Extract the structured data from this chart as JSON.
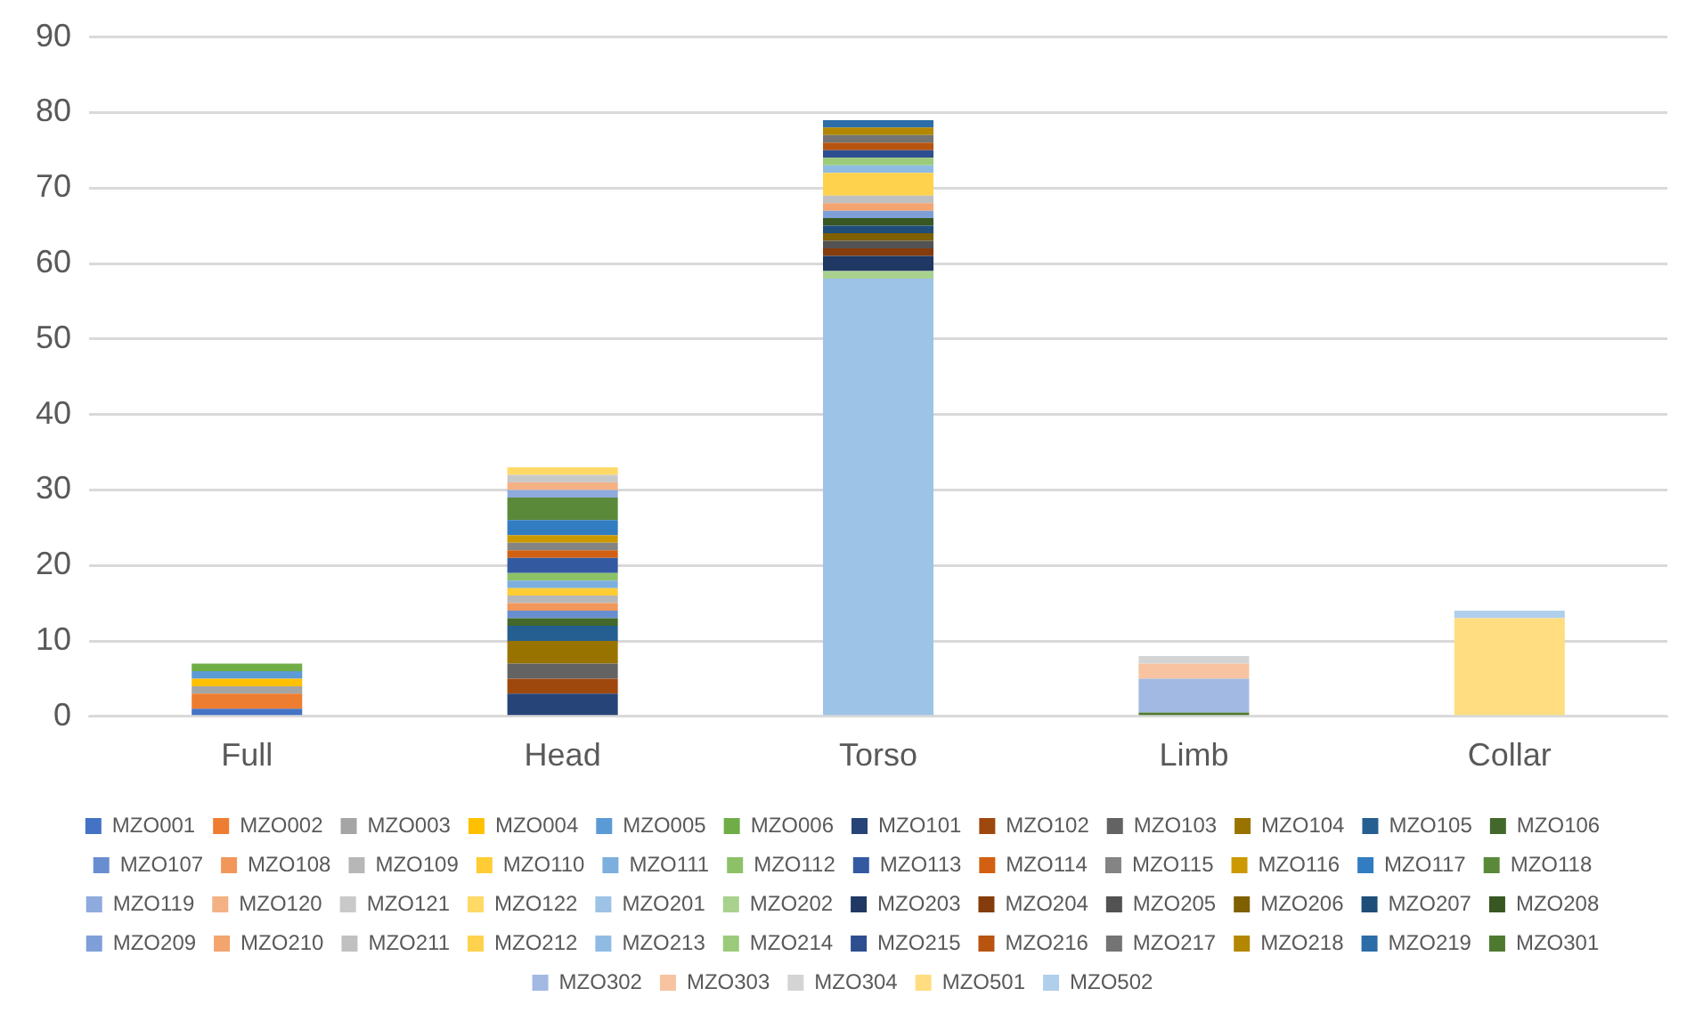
{
  "chart_data": {
    "type": "bar",
    "stacked": true,
    "categories": [
      "Full",
      "Head",
      "Torso",
      "Limb",
      "Collar"
    ],
    "ylim": [
      0,
      90
    ],
    "yticks": [
      0,
      10,
      20,
      30,
      40,
      50,
      60,
      70,
      80,
      90
    ],
    "grid": "y",
    "legend": "bottom",
    "series": [
      {
        "name": "MZO001",
        "color": "#4472c4",
        "values": [
          1,
          null,
          null,
          null,
          null
        ]
      },
      {
        "name": "MZO002",
        "color": "#ed7d31",
        "values": [
          2,
          null,
          null,
          null,
          null
        ]
      },
      {
        "name": "MZO003",
        "color": "#a5a5a5",
        "values": [
          1,
          null,
          null,
          null,
          null
        ]
      },
      {
        "name": "MZO004",
        "color": "#ffc000",
        "values": [
          1,
          null,
          null,
          null,
          null
        ]
      },
      {
        "name": "MZO005",
        "color": "#5b9bd5",
        "values": [
          1,
          null,
          null,
          null,
          null
        ]
      },
      {
        "name": "MZO006",
        "color": "#70ad47",
        "values": [
          1,
          null,
          null,
          null,
          null
        ]
      },
      {
        "name": "MZO101",
        "color": "#264478",
        "values": [
          null,
          3,
          null,
          null,
          null
        ]
      },
      {
        "name": "MZO102",
        "color": "#9e480e",
        "values": [
          null,
          2,
          null,
          null,
          null
        ]
      },
      {
        "name": "MZO103",
        "color": "#636363",
        "values": [
          null,
          2,
          null,
          null,
          null
        ]
      },
      {
        "name": "MZO104",
        "color": "#997300",
        "values": [
          null,
          3,
          null,
          null,
          null
        ]
      },
      {
        "name": "MZO105",
        "color": "#255e91",
        "values": [
          null,
          2,
          null,
          null,
          null
        ]
      },
      {
        "name": "MZO106",
        "color": "#43682b",
        "values": [
          null,
          1,
          null,
          null,
          null
        ]
      },
      {
        "name": "MZO107",
        "color": "#698ed0",
        "values": [
          null,
          1,
          null,
          null,
          null
        ]
      },
      {
        "name": "MZO108",
        "color": "#f1975a",
        "values": [
          null,
          1,
          null,
          null,
          null
        ]
      },
      {
        "name": "MZO109",
        "color": "#b7b7b7",
        "values": [
          null,
          1,
          null,
          null,
          null
        ]
      },
      {
        "name": "MZO110",
        "color": "#ffcd33",
        "values": [
          null,
          1,
          null,
          null,
          null
        ]
      },
      {
        "name": "MZO111",
        "color": "#7cafdd",
        "values": [
          null,
          1,
          null,
          null,
          null
        ]
      },
      {
        "name": "MZO112",
        "color": "#8cc168",
        "values": [
          null,
          1,
          null,
          null,
          null
        ]
      },
      {
        "name": "MZO113",
        "color": "#335aa1",
        "values": [
          null,
          2,
          null,
          null,
          null
        ]
      },
      {
        "name": "MZO114",
        "color": "#d26012",
        "values": [
          null,
          1,
          null,
          null,
          null
        ]
      },
      {
        "name": "MZO115",
        "color": "#848484",
        "values": [
          null,
          1,
          null,
          null,
          null
        ]
      },
      {
        "name": "MZO116",
        "color": "#cc9a00",
        "values": [
          null,
          1,
          null,
          null,
          null
        ]
      },
      {
        "name": "MZO117",
        "color": "#327dc2",
        "values": [
          null,
          2,
          null,
          null,
          null
        ]
      },
      {
        "name": "MZO118",
        "color": "#5a8a39",
        "values": [
          null,
          3,
          null,
          null,
          null
        ]
      },
      {
        "name": "MZO119",
        "color": "#8faadc",
        "values": [
          null,
          1,
          null,
          null,
          null
        ]
      },
      {
        "name": "MZO120",
        "color": "#f4b183",
        "values": [
          null,
          1,
          null,
          null,
          null
        ]
      },
      {
        "name": "MZO121",
        "color": "#c9c9c9",
        "values": [
          null,
          1,
          null,
          null,
          null
        ]
      },
      {
        "name": "MZO122",
        "color": "#ffd966",
        "values": [
          null,
          1,
          null,
          null,
          null
        ]
      },
      {
        "name": "MZO201",
        "color": "#9dc3e6",
        "values": [
          null,
          null,
          58,
          null,
          null
        ]
      },
      {
        "name": "MZO202",
        "color": "#a9d18e",
        "values": [
          null,
          null,
          1,
          null,
          null
        ]
      },
      {
        "name": "MZO203",
        "color": "#203864",
        "values": [
          null,
          null,
          2,
          null,
          null
        ]
      },
      {
        "name": "MZO204",
        "color": "#843c0c",
        "values": [
          null,
          null,
          1,
          null,
          null
        ]
      },
      {
        "name": "MZO205",
        "color": "#525252",
        "values": [
          null,
          null,
          1,
          null,
          null
        ]
      },
      {
        "name": "MZO206",
        "color": "#7f6000",
        "values": [
          null,
          null,
          1,
          null,
          null
        ]
      },
      {
        "name": "MZO207",
        "color": "#1f4e79",
        "values": [
          null,
          null,
          1,
          null,
          null
        ]
      },
      {
        "name": "MZO208",
        "color": "#385723",
        "values": [
          null,
          null,
          1,
          null,
          null
        ]
      },
      {
        "name": "MZO209",
        "color": "#7f9fd8",
        "values": [
          null,
          null,
          1,
          null,
          null
        ]
      },
      {
        "name": "MZO210",
        "color": "#f4a46f",
        "values": [
          null,
          null,
          1,
          null,
          null
        ]
      },
      {
        "name": "MZO211",
        "color": "#c0c0c0",
        "values": [
          null,
          null,
          1,
          null,
          null
        ]
      },
      {
        "name": "MZO212",
        "color": "#ffd24d",
        "values": [
          null,
          null,
          3,
          null,
          null
        ]
      },
      {
        "name": "MZO213",
        "color": "#8fbbe3",
        "values": [
          null,
          null,
          1,
          null,
          null
        ]
      },
      {
        "name": "MZO214",
        "color": "#9bcb7a",
        "values": [
          null,
          null,
          1,
          null,
          null
        ]
      },
      {
        "name": "MZO215",
        "color": "#2e4f8f",
        "values": [
          null,
          null,
          1,
          null,
          null
        ]
      },
      {
        "name": "MZO216",
        "color": "#b85410",
        "values": [
          null,
          null,
          1,
          null,
          null
        ]
      },
      {
        "name": "MZO217",
        "color": "#747474",
        "values": [
          null,
          null,
          1,
          null,
          null
        ]
      },
      {
        "name": "MZO218",
        "color": "#b38700",
        "values": [
          null,
          null,
          1,
          null,
          null
        ]
      },
      {
        "name": "MZO219",
        "color": "#2c6da8",
        "values": [
          null,
          null,
          1,
          null,
          null
        ]
      },
      {
        "name": "MZO301",
        "color": "#4e7a30",
        "values": [
          null,
          null,
          null,
          0.5,
          null
        ]
      },
      {
        "name": "MZO302",
        "color": "#a2b9e3",
        "values": [
          null,
          null,
          null,
          4.5,
          null
        ]
      },
      {
        "name": "MZO303",
        "color": "#f7c3a0",
        "values": [
          null,
          null,
          null,
          2,
          null
        ]
      },
      {
        "name": "MZO304",
        "color": "#d4d4d4",
        "values": [
          null,
          null,
          null,
          1,
          null
        ]
      },
      {
        "name": "MZO501",
        "color": "#ffdd80",
        "values": [
          null,
          null,
          null,
          null,
          13
        ]
      },
      {
        "name": "MZO502",
        "color": "#b0cfea",
        "values": [
          null,
          null,
          null,
          null,
          1
        ]
      }
    ]
  }
}
